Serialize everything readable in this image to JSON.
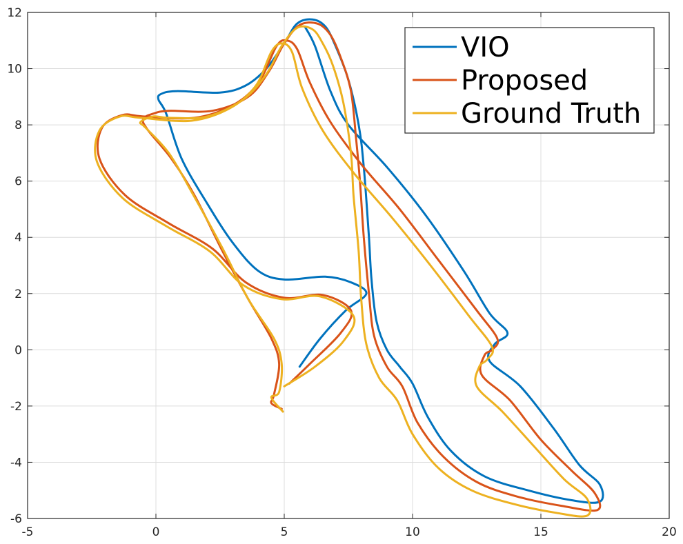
{
  "chart_data": {
    "type": "line",
    "title": "",
    "xlabel": "",
    "ylabel": "",
    "xlim": [
      -5,
      20
    ],
    "ylim": [
      -6,
      12
    ],
    "grid": true,
    "legend_position": "top-right",
    "x_ticks": [
      -5,
      0,
      5,
      10,
      15,
      20
    ],
    "x_tick_labels": [
      "-5",
      "0",
      "5",
      "10",
      "15",
      "20"
    ],
    "y_ticks": [
      -6,
      -4,
      -2,
      0,
      2,
      4,
      6,
      8,
      10,
      12
    ],
    "y_tick_labels": [
      "-6",
      "-4",
      "-2",
      "0",
      "2",
      "4",
      "6",
      "8",
      "10",
      "12"
    ],
    "series": [
      {
        "name": "VIO",
        "color": "#0072BD",
        "points": [
          [
            5.6,
            -0.6
          ],
          [
            6.4,
            0.4
          ],
          [
            7.4,
            1.4
          ],
          [
            8.2,
            2.0
          ],
          [
            7.6,
            2.4
          ],
          [
            6.6,
            2.6
          ],
          [
            5.0,
            2.5
          ],
          [
            4.0,
            2.8
          ],
          [
            3.0,
            3.8
          ],
          [
            2.0,
            5.2
          ],
          [
            1.0,
            6.8
          ],
          [
            0.4,
            8.4
          ],
          [
            0.1,
            8.9
          ],
          [
            0.2,
            9.1
          ],
          [
            0.8,
            9.2
          ],
          [
            2.5,
            9.15
          ],
          [
            3.5,
            9.4
          ],
          [
            4.3,
            10.0
          ],
          [
            5.0,
            10.9
          ],
          [
            5.5,
            11.6
          ],
          [
            6.1,
            11.75
          ],
          [
            6.6,
            11.5
          ],
          [
            7.0,
            10.8
          ],
          [
            7.5,
            9.6
          ],
          [
            7.9,
            8.0
          ],
          [
            8.1,
            6.5
          ],
          [
            8.3,
            4.0
          ],
          [
            8.4,
            2.5
          ],
          [
            8.6,
            1.0
          ],
          [
            9.0,
            0.0
          ],
          [
            9.5,
            -0.6
          ],
          [
            10.0,
            -1.2
          ],
          [
            10.6,
            -2.4
          ],
          [
            11.5,
            -3.6
          ],
          [
            12.8,
            -4.5
          ],
          [
            14.5,
            -5.0
          ],
          [
            16.2,
            -5.35
          ],
          [
            17.3,
            -5.4
          ],
          [
            17.3,
            -4.8
          ],
          [
            16.5,
            -4.1
          ],
          [
            15.5,
            -2.8
          ],
          [
            14.2,
            -1.3
          ],
          [
            13.0,
            -0.4
          ],
          [
            13.2,
            0.2
          ],
          [
            13.7,
            0.6
          ],
          [
            13.0,
            1.3
          ],
          [
            12.0,
            2.8
          ],
          [
            10.5,
            4.8
          ],
          [
            9.0,
            6.5
          ],
          [
            7.5,
            8.0
          ],
          [
            6.8,
            9.2
          ],
          [
            6.2,
            10.8
          ],
          [
            5.8,
            11.5
          ]
        ]
      },
      {
        "name": "Proposed",
        "color": "#D95319",
        "points": [
          [
            4.9,
            -2.1
          ],
          [
            4.5,
            -1.9
          ],
          [
            4.6,
            -1.6
          ],
          [
            4.8,
            -0.5
          ],
          [
            4.5,
            0.4
          ],
          [
            3.6,
            1.8
          ],
          [
            2.6,
            3.5
          ],
          [
            1.5,
            5.5
          ],
          [
            0.6,
            6.8
          ],
          [
            -0.3,
            7.8
          ],
          [
            -0.5,
            8.2
          ],
          [
            -0.1,
            8.4
          ],
          [
            0.5,
            8.5
          ],
          [
            2.2,
            8.5
          ],
          [
            3.6,
            9.0
          ],
          [
            4.4,
            9.9
          ],
          [
            5.0,
            10.9
          ],
          [
            5.6,
            11.55
          ],
          [
            6.3,
            11.6
          ],
          [
            6.8,
            11.2
          ],
          [
            7.2,
            10.4
          ],
          [
            7.6,
            9.2
          ],
          [
            7.8,
            7.5
          ],
          [
            7.95,
            6.0
          ],
          [
            8.1,
            4.0
          ],
          [
            8.3,
            2.0
          ],
          [
            8.5,
            0.5
          ],
          [
            9.0,
            -0.6
          ],
          [
            9.6,
            -1.3
          ],
          [
            10.2,
            -2.6
          ],
          [
            11.2,
            -3.8
          ],
          [
            12.5,
            -4.7
          ],
          [
            14.0,
            -5.2
          ],
          [
            15.8,
            -5.55
          ],
          [
            17.2,
            -5.7
          ],
          [
            17.1,
            -5.1
          ],
          [
            16.2,
            -4.3
          ],
          [
            15.0,
            -3.2
          ],
          [
            13.8,
            -1.8
          ],
          [
            12.7,
            -0.9
          ],
          [
            12.8,
            -0.2
          ],
          [
            13.1,
            0.0
          ],
          [
            13.3,
            0.4
          ],
          [
            12.5,
            1.4
          ],
          [
            11.0,
            3.2
          ],
          [
            9.5,
            5.0
          ],
          [
            8.0,
            6.6
          ],
          [
            6.8,
            8.1
          ],
          [
            6.0,
            9.5
          ],
          [
            5.5,
            10.7
          ],
          [
            5.1,
            11.0
          ],
          [
            4.7,
            10.8
          ],
          [
            4.0,
            9.5
          ],
          [
            3.0,
            8.7
          ],
          [
            1.5,
            8.25
          ],
          [
            -0.5,
            8.3
          ],
          [
            -1.3,
            8.35
          ],
          [
            -2.1,
            7.9
          ],
          [
            -2.2,
            6.8
          ],
          [
            -1.2,
            5.5
          ],
          [
            0.5,
            4.5
          ],
          [
            2.2,
            3.6
          ],
          [
            3.5,
            2.4
          ],
          [
            5.0,
            1.85
          ],
          [
            6.5,
            1.95
          ],
          [
            7.6,
            1.4
          ],
          [
            7.2,
            0.6
          ],
          [
            6.0,
            -0.5
          ],
          [
            5.2,
            -1.2
          ]
        ]
      },
      {
        "name": "Ground Truth",
        "color": "#EDB120",
        "points": [
          [
            4.95,
            -2.2
          ],
          [
            4.5,
            -1.7
          ],
          [
            4.8,
            -1.5
          ],
          [
            4.9,
            -0.5
          ],
          [
            4.6,
            0.4
          ],
          [
            3.6,
            1.8
          ],
          [
            2.6,
            3.6
          ],
          [
            1.4,
            5.6
          ],
          [
            0.5,
            7.0
          ],
          [
            -0.4,
            7.9
          ],
          [
            -0.6,
            8.1
          ],
          [
            -0.1,
            8.3
          ],
          [
            0.5,
            8.25
          ],
          [
            2.0,
            8.3
          ],
          [
            3.4,
            8.9
          ],
          [
            4.3,
            9.8
          ],
          [
            4.9,
            10.8
          ],
          [
            5.5,
            11.45
          ],
          [
            6.1,
            11.4
          ],
          [
            6.5,
            10.9
          ],
          [
            6.9,
            10.1
          ],
          [
            7.3,
            8.8
          ],
          [
            7.6,
            7.0
          ],
          [
            7.7,
            5.5
          ],
          [
            7.9,
            3.5
          ],
          [
            8.0,
            1.8
          ],
          [
            8.2,
            0.2
          ],
          [
            8.7,
            -1.0
          ],
          [
            9.4,
            -1.8
          ],
          [
            10.0,
            -3.0
          ],
          [
            11.0,
            -4.2
          ],
          [
            12.3,
            -5.0
          ],
          [
            14.0,
            -5.5
          ],
          [
            15.6,
            -5.8
          ],
          [
            16.8,
            -5.9
          ],
          [
            16.8,
            -5.3
          ],
          [
            15.9,
            -4.6
          ],
          [
            14.7,
            -3.4
          ],
          [
            13.5,
            -2.2
          ],
          [
            12.5,
            -1.3
          ],
          [
            12.6,
            -0.6
          ],
          [
            12.9,
            -0.35
          ],
          [
            13.1,
            0.1
          ],
          [
            12.2,
            1.2
          ],
          [
            10.7,
            3.0
          ],
          [
            9.2,
            4.7
          ],
          [
            7.7,
            6.3
          ],
          [
            6.5,
            7.8
          ],
          [
            5.7,
            9.3
          ],
          [
            5.3,
            10.6
          ],
          [
            4.9,
            10.9
          ],
          [
            4.5,
            10.6
          ],
          [
            3.9,
            9.4
          ],
          [
            2.9,
            8.6
          ],
          [
            1.4,
            8.15
          ],
          [
            -0.6,
            8.25
          ],
          [
            -1.4,
            8.3
          ],
          [
            -2.2,
            7.8
          ],
          [
            -2.3,
            6.7
          ],
          [
            -1.3,
            5.4
          ],
          [
            0.4,
            4.4
          ],
          [
            2.1,
            3.5
          ],
          [
            3.4,
            2.3
          ],
          [
            4.9,
            1.8
          ],
          [
            6.4,
            1.9
          ],
          [
            7.7,
            1.2
          ],
          [
            7.3,
            0.3
          ],
          [
            6.2,
            -0.6
          ],
          [
            5.0,
            -1.3
          ]
        ]
      }
    ]
  }
}
